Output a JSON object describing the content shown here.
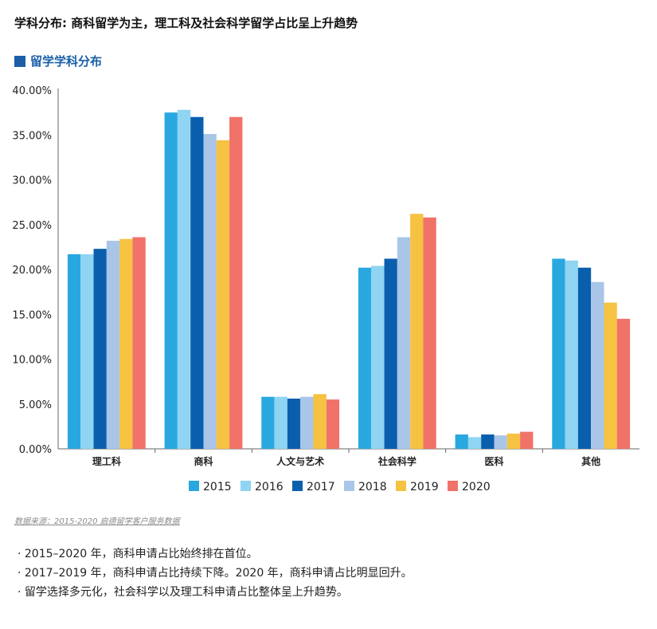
{
  "header": {
    "headline": "学科分布: 商科留学为主，理工科及社会科学留学占比呈上升趋势",
    "section_title": "留学学科分布"
  },
  "source": "数据来源：2015-2020 启德留学客户服务数据",
  "notes": [
    "· 2015–2020 年，商科申请占比始终排在首位。",
    "· 2017–2019 年，商科申请占比持续下降。2020 年，商科申请占比明显回升。",
    "· 留学选择多元化，社会科学以及理工科申请占比整体呈上升趋势。"
  ],
  "chart_data": {
    "type": "bar",
    "title": "",
    "xlabel": "",
    "ylabel": "",
    "ylim": [
      0,
      40
    ],
    "yticks": [
      "0.00%",
      "5.00%",
      "10.00%",
      "15.00%",
      "20.00%",
      "25.00%",
      "30.00%",
      "35.00%",
      "40.00%"
    ],
    "grid": false,
    "legend_position": "bottom",
    "categories": [
      "理工科",
      "商科",
      "人文与艺术",
      "社会科学",
      "医科",
      "其他"
    ],
    "series": [
      {
        "name": "2015",
        "color": "#29a8e0",
        "values": [
          21.7,
          37.5,
          5.8,
          20.2,
          1.6,
          21.2
        ]
      },
      {
        "name": "2016",
        "color": "#8fd4f2",
        "values": [
          21.7,
          37.8,
          5.8,
          20.4,
          1.3,
          21.0
        ]
      },
      {
        "name": "2017",
        "color": "#0a5fad",
        "values": [
          22.3,
          37.0,
          5.6,
          21.2,
          1.6,
          20.2
        ]
      },
      {
        "name": "2018",
        "color": "#a9c5e8",
        "values": [
          23.2,
          35.1,
          5.8,
          23.6,
          1.5,
          18.6
        ]
      },
      {
        "name": "2019",
        "color": "#f5c241",
        "values": [
          23.4,
          34.4,
          6.1,
          26.2,
          1.7,
          16.3
        ]
      },
      {
        "name": "2020",
        "color": "#f07268",
        "values": [
          23.6,
          37.0,
          5.5,
          25.8,
          1.9,
          14.5
        ]
      }
    ]
  }
}
